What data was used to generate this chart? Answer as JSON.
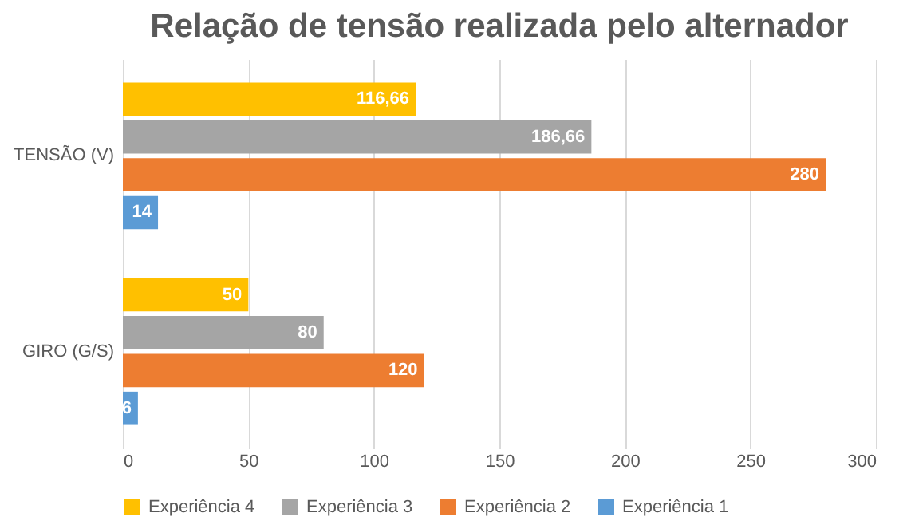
{
  "chart_data": {
    "type": "bar",
    "orientation": "horizontal",
    "title": "Relação de tensão realizada pelo alternador",
    "categories": [
      "TENSÃO (V)",
      "GIRO (G/S)"
    ],
    "series": [
      {
        "name": "Experiência 4",
        "color": "#ffc000",
        "values": [
          116.66,
          50
        ],
        "value_labels": [
          "116,66",
          "50"
        ]
      },
      {
        "name": "Experiência 3",
        "color": "#a5a5a5",
        "values": [
          186.66,
          80
        ],
        "value_labels": [
          "186,66",
          "80"
        ]
      },
      {
        "name": "Experiência 2",
        "color": "#ed7d31",
        "values": [
          280,
          120
        ],
        "value_labels": [
          "280",
          "120"
        ]
      },
      {
        "name": "Experiência 1",
        "color": "#5b9bd5",
        "values": [
          14,
          6
        ],
        "value_labels": [
          "14",
          "6"
        ]
      }
    ],
    "xlim": [
      0,
      300
    ],
    "xticks": [
      0,
      50,
      100,
      150,
      200,
      250,
      300
    ],
    "grid": "x",
    "legend": "bottom"
  }
}
